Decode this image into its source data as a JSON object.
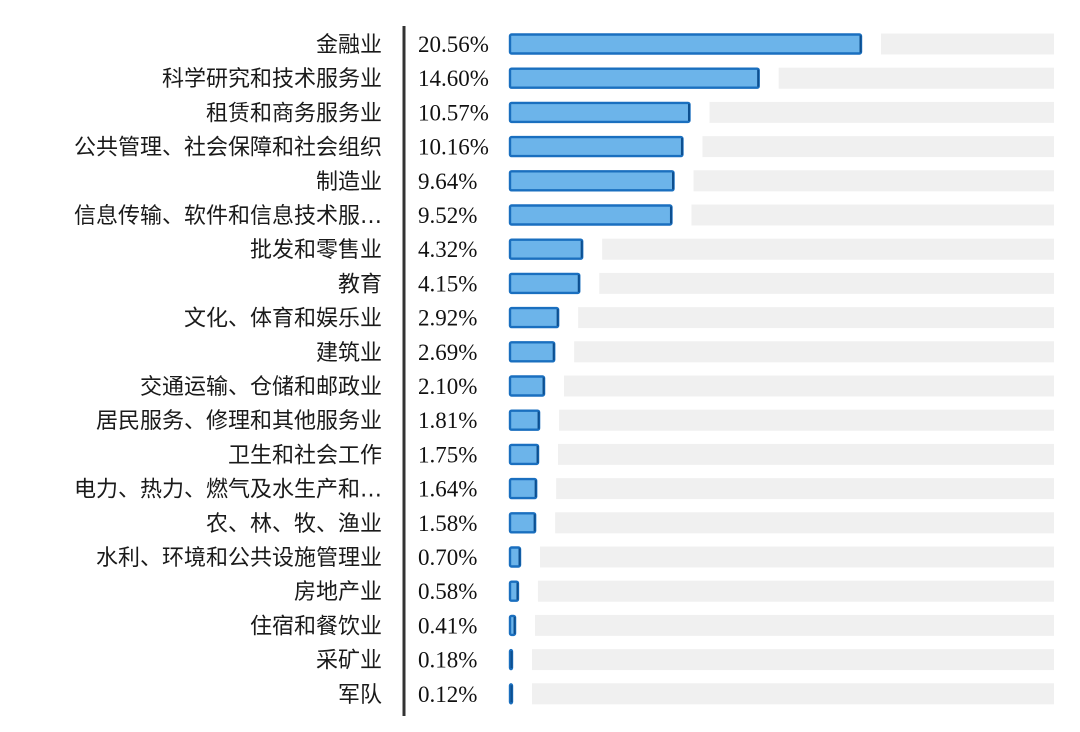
{
  "chart_data": {
    "type": "bar",
    "orientation": "horizontal",
    "value_unit": "%",
    "title": "",
    "xlabel": "",
    "ylabel": "",
    "xlim": [
      0,
      25
    ],
    "grid": false,
    "colors": {
      "bar_fill": "#6cb4ea",
      "bar_edge": "#1a6fbf",
      "track": "#f0f0f0",
      "axis": "#333333"
    },
    "categories": [
      "金融业",
      "科学研究和技术服务业",
      "租赁和商务服务业",
      "公共管理、社会保障和社会组织",
      "制造业",
      "信息传输、软件和信息技术服…",
      "批发和零售业",
      "教育",
      "文化、体育和娱乐业",
      "建筑业",
      "交通运输、仓储和邮政业",
      "居民服务、修理和其他服务业",
      "卫生和社会工作",
      "电力、热力、燃气及水生产和…",
      "农、林、牧、渔业",
      "水利、环境和公共设施管理业",
      "房地产业",
      "住宿和餐饮业",
      "采矿业",
      "军队"
    ],
    "values": [
      20.56,
      14.6,
      10.57,
      10.16,
      9.64,
      9.52,
      4.32,
      4.15,
      2.92,
      2.69,
      2.1,
      1.81,
      1.75,
      1.64,
      1.58,
      0.7,
      0.58,
      0.41,
      0.18,
      0.12
    ],
    "value_labels": [
      "20.56%",
      "14.60%",
      "10.57%",
      "10.16%",
      "9.64%",
      "9.52%",
      "4.32%",
      "4.15%",
      "2.92%",
      "2.69%",
      "2.10%",
      "1.81%",
      "1.75%",
      "1.64%",
      "1.58%",
      "0.70%",
      "0.58%",
      "0.41%",
      "0.18%",
      "0.12%"
    ]
  }
}
